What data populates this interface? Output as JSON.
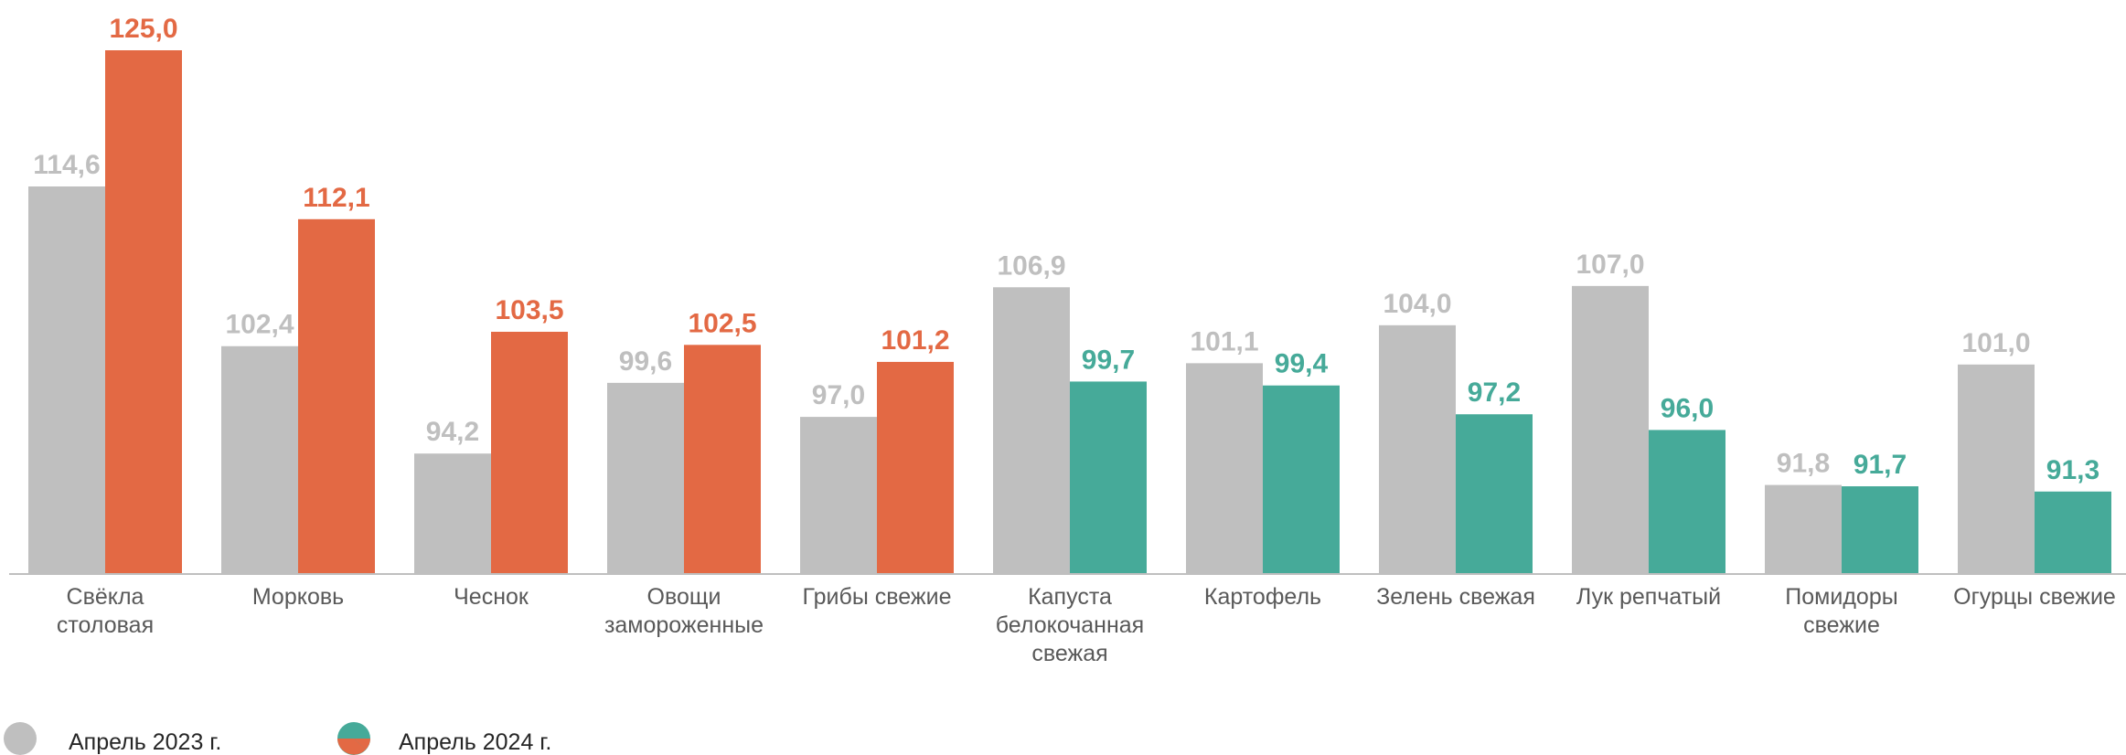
{
  "chart_data": {
    "type": "bar",
    "categories": [
      [
        "Свёкла",
        "столовая"
      ],
      [
        "Морковь"
      ],
      [
        "Чеснок"
      ],
      [
        "Овощи",
        "замороженные"
      ],
      [
        "Грибы свежие"
      ],
      [
        "Капуста",
        "белокочанная",
        "свежая"
      ],
      [
        "Картофель"
      ],
      [
        "Зелень свежая"
      ],
      [
        "Лук репчатый"
      ],
      [
        "Помидоры",
        "свежие"
      ],
      [
        "Огурцы свежие"
      ]
    ],
    "series": [
      {
        "name": "Апрель 2023 г.",
        "values": [
          114.6,
          102.4,
          94.2,
          99.6,
          97.0,
          106.9,
          101.1,
          104.0,
          107.0,
          91.8,
          101.0
        ],
        "labels": [
          "114,6",
          "102,4",
          "94,2",
          "99,6",
          "97,0",
          "106,9",
          "101,1",
          "104,0",
          "107,0",
          "91,8",
          "101,0"
        ],
        "color": "#bfbfbf"
      },
      {
        "name": "Апрель 2024 г.",
        "values": [
          125.0,
          112.1,
          103.5,
          102.5,
          101.2,
          99.7,
          99.4,
          97.2,
          96.0,
          91.7,
          91.3
        ],
        "labels": [
          "125,0",
          "112,1",
          "103,5",
          "102,5",
          "101,2",
          "99,7",
          "99,4",
          "97,2",
          "96,0",
          "91,7",
          "91,3"
        ],
        "colors": [
          "#e36944",
          "#e36944",
          "#e36944",
          "#e36944",
          "#e36944",
          "#46aa99",
          "#46aa99",
          "#46aa99",
          "#46aa99",
          "#46aa99",
          "#46aa99"
        ]
      }
    ],
    "ylim": [
      85,
      125
    ],
    "colors": {
      "above_100": "#e36944",
      "below_100": "#46aa99",
      "prev_year": "#bfbfbf",
      "prev_label": "#bfbfbf",
      "axis": "#bfbfbf"
    },
    "legend": "bottom-left"
  }
}
